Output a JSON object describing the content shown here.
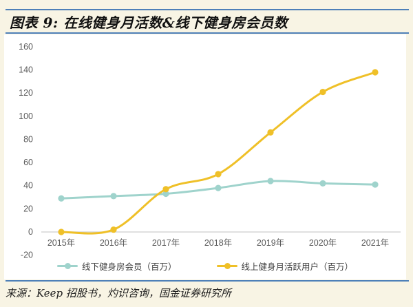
{
  "title": "图表 9:  在线健身月活数&线下健身房会员数",
  "source": "来源：Keep 招股书，灼识咨询，国金证券研究所",
  "colors": {
    "page_background": "#f8f4e4",
    "panel_background": "#ffffff",
    "divider_blue": "#4e80b8",
    "axis_label_gray": "#595959",
    "zero_line_gray": "#d6d6d6",
    "series_offline_teal": "#9fd3cc",
    "series_online_yellow": "#efc028"
  },
  "chart_data": {
    "type": "line",
    "x": [
      "2015年",
      "2016年",
      "2017年",
      "2018年",
      "2019年",
      "2020年",
      "2021年"
    ],
    "series": [
      {
        "name": "线下健身房会员（百万）",
        "color": "#9fd3cc",
        "values": [
          29,
          31,
          33,
          38,
          44,
          42,
          41
        ]
      },
      {
        "name": "线上健身月活跃用户（百万）",
        "color": "#efc028",
        "values": [
          0,
          2,
          37,
          50,
          86,
          121,
          138
        ]
      }
    ],
    "title": "在线健身月活数&线下健身房会员数",
    "xlabel": "",
    "ylabel": "",
    "ylim": [
      -20,
      160
    ],
    "ytick_step": 20,
    "grid": false,
    "smooth": true,
    "legend_position": "bottom"
  }
}
